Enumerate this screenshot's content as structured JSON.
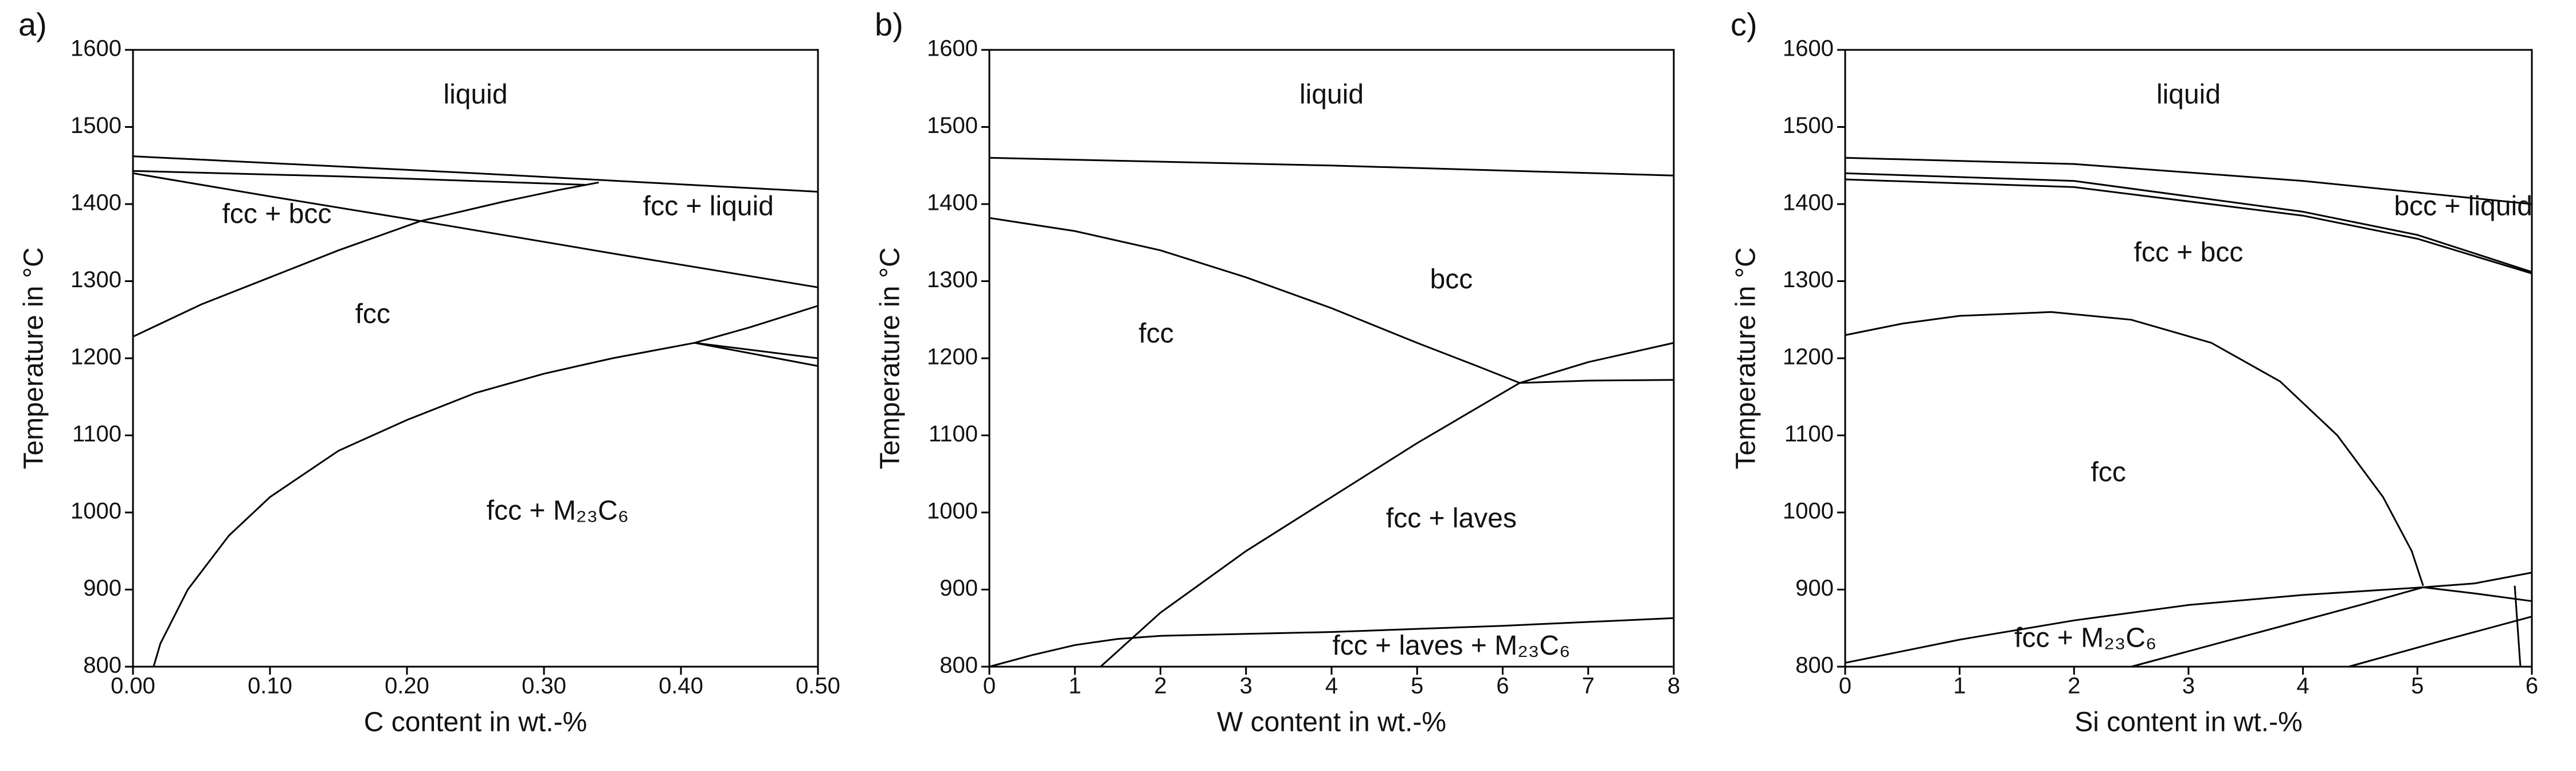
{
  "chart_data": [
    {
      "type": "line",
      "label": "a)",
      "xlabel": "C content in wt.-%",
      "ylabel": "Temperature in °C",
      "xlim": [
        0,
        0.5
      ],
      "ylim": [
        800,
        1600
      ],
      "xticks": [
        {
          "value": 0,
          "label": "0.00"
        },
        {
          "value": 0.1,
          "label": "0.10"
        },
        {
          "value": 0.2,
          "label": "0.20"
        },
        {
          "value": 0.3,
          "label": "0.30"
        },
        {
          "value": 0.4,
          "label": "0.40"
        },
        {
          "value": 0.5,
          "label": "0.50"
        }
      ],
      "yticks": [
        800,
        900,
        1000,
        1100,
        1200,
        1300,
        1400,
        1500,
        1600
      ],
      "color": "#000000",
      "series": [
        {
          "x": [
            0,
            0.25,
            0.5
          ],
          "values": [
            1462,
            1440,
            1416
          ]
        },
        {
          "x": [
            0,
            0.15,
            0.33
          ],
          "values": [
            1443,
            1436,
            1425
          ]
        },
        {
          "x": [
            0,
            0.1,
            0.21,
            0.35,
            0.5
          ],
          "values": [
            1440,
            1410,
            1378,
            1336,
            1292
          ]
        },
        {
          "x": [
            0,
            0.05,
            0.1,
            0.15,
            0.21,
            0.27,
            0.31,
            0.34
          ],
          "values": [
            1228,
            1270,
            1305,
            1340,
            1378,
            1403,
            1418,
            1428
          ]
        },
        {
          "x": [
            0.015,
            0.02,
            0.04,
            0.07,
            0.1,
            0.15,
            0.2,
            0.25,
            0.3,
            0.35,
            0.41,
            0.45,
            0.5
          ],
          "values": [
            800,
            830,
            900,
            970,
            1020,
            1080,
            1120,
            1155,
            1180,
            1200,
            1220,
            1240,
            1268
          ]
        },
        {
          "x": [
            0.41,
            0.5
          ],
          "values": [
            1220,
            1200
          ]
        },
        {
          "x": [
            0.41,
            0.5
          ],
          "values": [
            1220,
            1190
          ]
        }
      ],
      "annotations": [
        {
          "text": "liquid",
          "x": 0.25,
          "y": 1540
        },
        {
          "text": "fcc + bcc",
          "x": 0.105,
          "y": 1385
        },
        {
          "text": "fcc + liquid",
          "x": 0.42,
          "y": 1395
        },
        {
          "text": "fcc",
          "x": 0.175,
          "y": 1255
        },
        {
          "text": "fcc + M₂₃C₆",
          "x": 0.31,
          "y": 1000
        }
      ]
    },
    {
      "type": "line",
      "label": "b)",
      "xlabel": "W content in wt.-%",
      "ylabel": "Temperature in °C",
      "xlim": [
        0,
        8
      ],
      "ylim": [
        800,
        1600
      ],
      "xticks": [
        0,
        1,
        2,
        3,
        4,
        5,
        6,
        7,
        8
      ],
      "yticks": [
        800,
        900,
        1000,
        1100,
        1200,
        1300,
        1400,
        1500,
        1600
      ],
      "color": "#000000",
      "series": [
        {
          "x": [
            0,
            4,
            8
          ],
          "values": [
            1460,
            1450,
            1437
          ]
        },
        {
          "x": [
            0,
            1,
            2,
            3,
            4,
            5,
            5.7,
            6.2
          ],
          "values": [
            1382,
            1365,
            1340,
            1305,
            1265,
            1220,
            1190,
            1168
          ]
        },
        {
          "x": [
            1.3,
            2,
            3,
            4,
            5,
            6.2,
            7,
            8
          ],
          "values": [
            800,
            870,
            950,
            1020,
            1090,
            1168,
            1195,
            1220
          ]
        },
        {
          "x": [
            6.2,
            7,
            8
          ],
          "values": [
            1168,
            1171,
            1172
          ]
        },
        {
          "x": [
            0,
            0.5,
            1,
            1.5,
            2,
            4,
            6,
            8
          ],
          "values": [
            800,
            815,
            828,
            836,
            840,
            845,
            853,
            863
          ]
        }
      ],
      "annotations": [
        {
          "text": "liquid",
          "x": 4,
          "y": 1540
        },
        {
          "text": "bcc",
          "x": 5.4,
          "y": 1300
        },
        {
          "text": "fcc",
          "x": 1.95,
          "y": 1230
        },
        {
          "text": "fcc + laves",
          "x": 5.4,
          "y": 990
        },
        {
          "text": "fcc + laves + M₂₃C₆",
          "x": 5.4,
          "y": 825
        }
      ]
    },
    {
      "type": "line",
      "label": "c)",
      "xlabel": "Si content in wt.-%",
      "ylabel": "Temperature in °C",
      "xlim": [
        0,
        6
      ],
      "ylim": [
        800,
        1600
      ],
      "xticks": [
        0,
        1,
        2,
        3,
        4,
        5,
        6
      ],
      "yticks": [
        800,
        900,
        1000,
        1100,
        1200,
        1300,
        1400,
        1500,
        1600
      ],
      "color": "#000000",
      "series": [
        {
          "x": [
            0,
            2,
            4,
            6
          ],
          "values": [
            1460,
            1452,
            1430,
            1400
          ]
        },
        {
          "x": [
            0,
            2,
            4,
            5,
            6
          ],
          "values": [
            1440,
            1430,
            1390,
            1360,
            1312
          ]
        },
        {
          "x": [
            0,
            2,
            4,
            5,
            6
          ],
          "values": [
            1432,
            1422,
            1385,
            1355,
            1310
          ]
        },
        {
          "x": [
            0,
            0.5,
            1,
            1.8,
            2.5,
            3.2,
            3.8,
            4.3,
            4.7,
            4.95,
            5.05
          ],
          "values": [
            1230,
            1245,
            1255,
            1260,
            1250,
            1220,
            1170,
            1100,
            1020,
            950,
            905
          ]
        },
        {
          "x": [
            0,
            1,
            2,
            3,
            4,
            5.05,
            5.5,
            6
          ],
          "values": [
            805,
            835,
            860,
            880,
            893,
            903,
            908,
            922
          ]
        },
        {
          "x": [
            2.5,
            3.5,
            4.5,
            5.05
          ],
          "values": [
            800,
            840,
            880,
            903
          ]
        },
        {
          "x": [
            4.4,
            5.2,
            6
          ],
          "values": [
            800,
            833,
            865
          ]
        },
        {
          "x": [
            5.05,
            5.5,
            6
          ],
          "values": [
            903,
            895,
            885
          ]
        },
        {
          "x": [
            5.85,
            5.9
          ],
          "values": [
            905,
            800
          ]
        }
      ],
      "annotations": [
        {
          "text": "liquid",
          "x": 3,
          "y": 1540
        },
        {
          "text": "bcc + liquid",
          "x": 5.4,
          "y": 1395
        },
        {
          "text": "fcc + bcc",
          "x": 3,
          "y": 1335
        },
        {
          "text": "fcc",
          "x": 2.3,
          "y": 1050
        },
        {
          "text": "fcc + M₂₃C₆",
          "x": 2.1,
          "y": 835
        }
      ]
    }
  ]
}
